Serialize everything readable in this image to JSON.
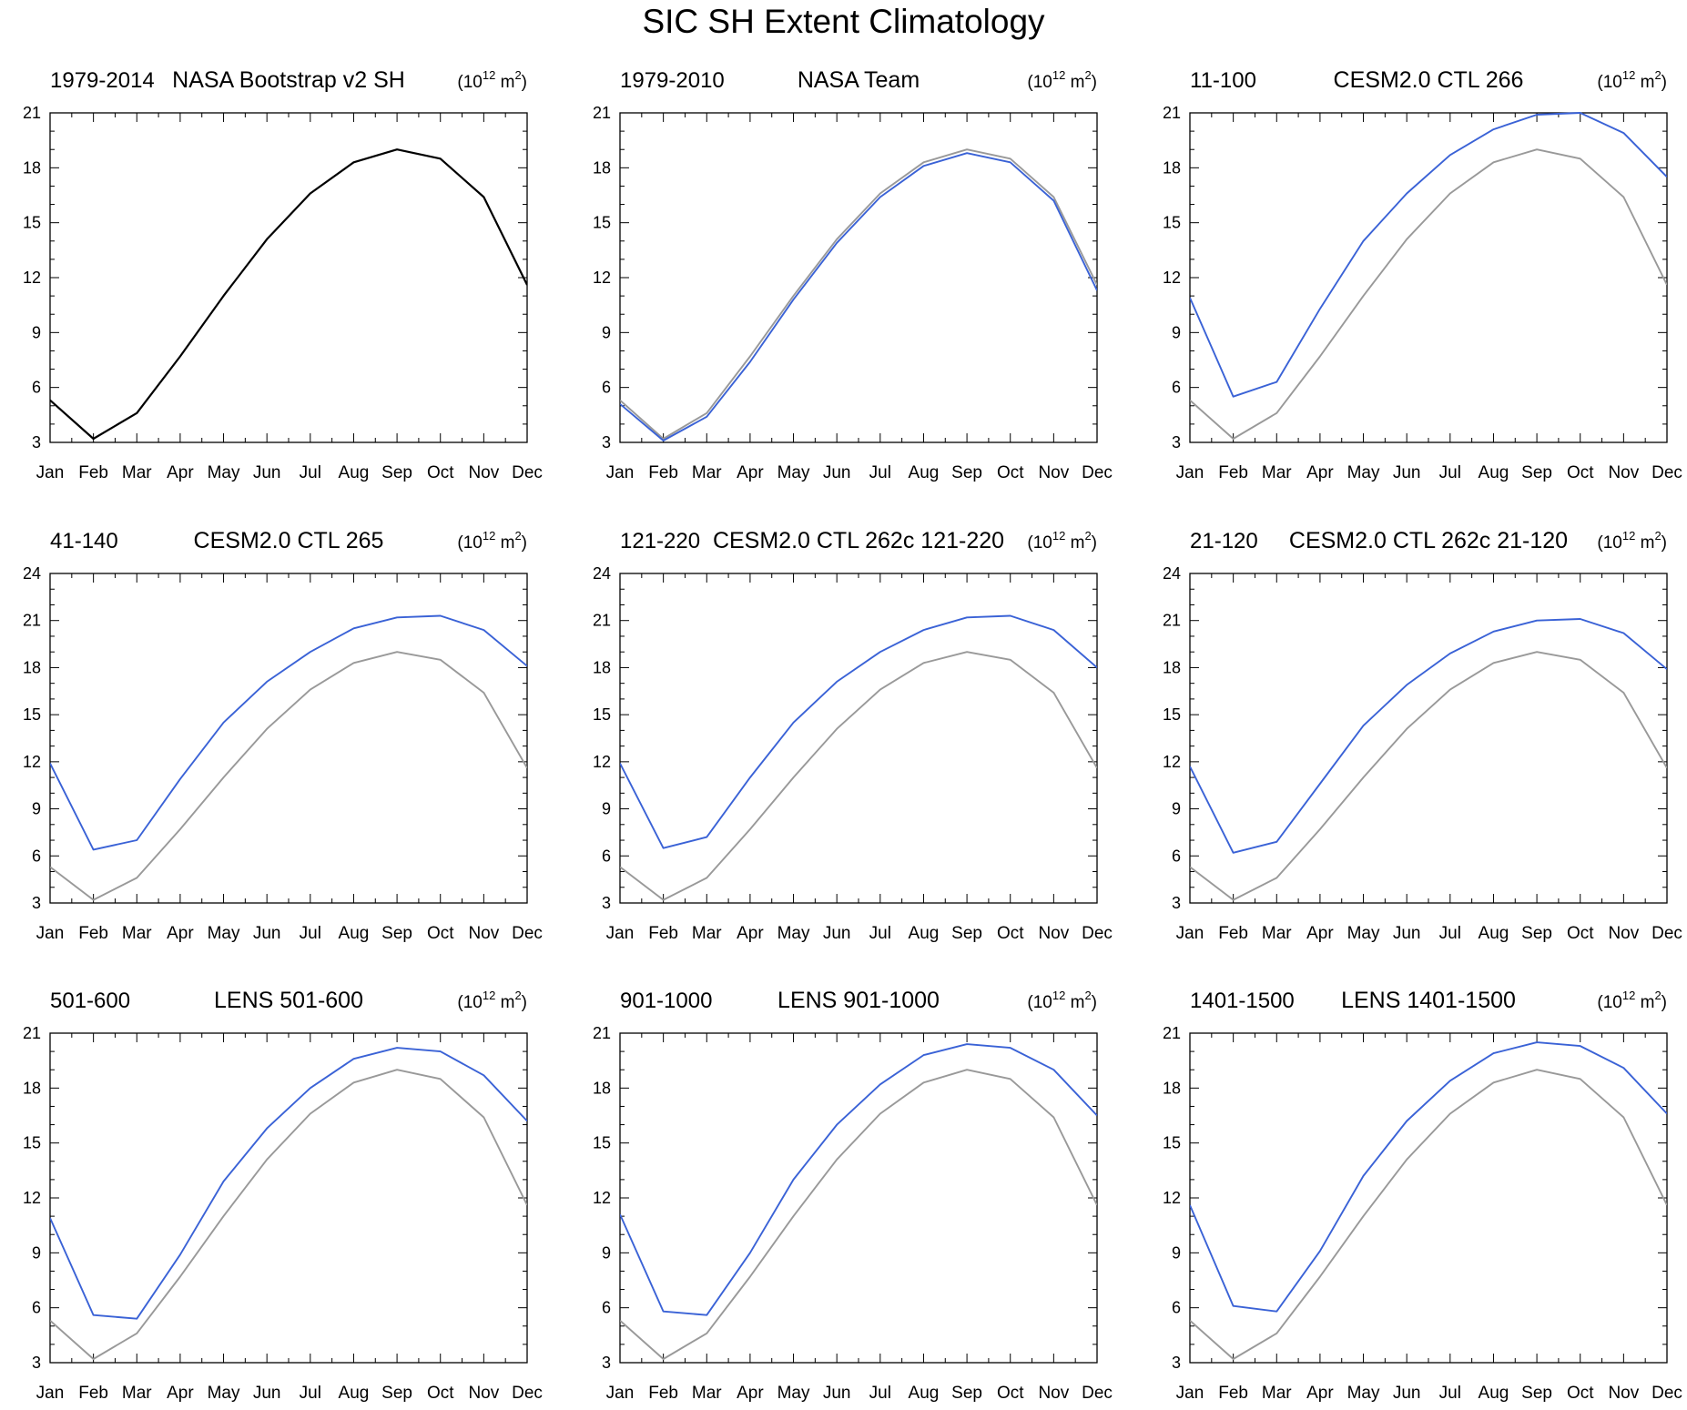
{
  "title": "SIC SH Extent Climatology",
  "units_label": {
    "base": "(10",
    "exponent": "12",
    "unit": " m",
    "unit_exponent": "2",
    "close": ")"
  },
  "colors": {
    "reference": "#000000",
    "reference_overlay": "#999999",
    "model": "#3a62d6"
  },
  "chart_data": [
    {
      "type": "line",
      "period": "1979-2014",
      "title": "NASA Bootstrap v2 SH",
      "categories": [
        "Jan",
        "Feb",
        "Mar",
        "Apr",
        "May",
        "Jun",
        "Jul",
        "Aug",
        "Sep",
        "Oct",
        "Nov",
        "Dec"
      ],
      "ylim": [
        3,
        21
      ],
      "yticks": [
        3,
        6,
        9,
        12,
        15,
        18,
        21
      ],
      "series": [
        {
          "name": "NASA Bootstrap v2 SH",
          "role": "reference",
          "values": [
            5.3,
            3.2,
            4.6,
            7.7,
            11.0,
            14.1,
            16.6,
            18.3,
            19.0,
            18.5,
            16.4,
            11.6
          ]
        }
      ]
    },
    {
      "type": "line",
      "period": "1979-2010",
      "title": "NASA Team",
      "categories": [
        "Jan",
        "Feb",
        "Mar",
        "Apr",
        "May",
        "Jun",
        "Jul",
        "Aug",
        "Sep",
        "Oct",
        "Nov",
        "Dec"
      ],
      "ylim": [
        3,
        21
      ],
      "yticks": [
        3,
        6,
        9,
        12,
        15,
        18,
        21
      ],
      "series": [
        {
          "name": "NASA Bootstrap v2 SH",
          "role": "reference_overlay",
          "values": [
            5.3,
            3.2,
            4.6,
            7.7,
            11.0,
            14.1,
            16.6,
            18.3,
            19.0,
            18.5,
            16.4,
            11.6
          ]
        },
        {
          "name": "NASA Team",
          "role": "model",
          "values": [
            5.1,
            3.1,
            4.4,
            7.4,
            10.8,
            13.9,
            16.4,
            18.1,
            18.8,
            18.3,
            16.2,
            11.3
          ]
        }
      ]
    },
    {
      "type": "line",
      "period": "11-100",
      "title": "CESM2.0 CTL 266",
      "categories": [
        "Jan",
        "Feb",
        "Mar",
        "Apr",
        "May",
        "Jun",
        "Jul",
        "Aug",
        "Sep",
        "Oct",
        "Nov",
        "Dec"
      ],
      "ylim": [
        3,
        21
      ],
      "yticks": [
        3,
        6,
        9,
        12,
        15,
        18,
        21
      ],
      "series": [
        {
          "name": "NASA Bootstrap v2 SH",
          "role": "reference_overlay",
          "values": [
            5.3,
            3.2,
            4.6,
            7.7,
            11.0,
            14.1,
            16.6,
            18.3,
            19.0,
            18.5,
            16.4,
            11.6
          ]
        },
        {
          "name": "CESM2.0 CTL 266",
          "role": "model",
          "values": [
            10.9,
            5.5,
            6.3,
            10.3,
            14.0,
            16.6,
            18.7,
            20.1,
            20.9,
            21.0,
            19.9,
            17.5
          ]
        }
      ]
    },
    {
      "type": "line",
      "period": "41-140",
      "title": "CESM2.0 CTL 265",
      "categories": [
        "Jan",
        "Feb",
        "Mar",
        "Apr",
        "May",
        "Jun",
        "Jul",
        "Aug",
        "Sep",
        "Oct",
        "Nov",
        "Dec"
      ],
      "ylim": [
        3,
        24
      ],
      "yticks": [
        3,
        6,
        9,
        12,
        15,
        18,
        21,
        24
      ],
      "series": [
        {
          "name": "NASA Bootstrap v2 SH",
          "role": "reference_overlay",
          "values": [
            5.3,
            3.2,
            4.6,
            7.7,
            11.0,
            14.1,
            16.6,
            18.3,
            19.0,
            18.5,
            16.4,
            11.6
          ]
        },
        {
          "name": "CESM2.0 CTL 265",
          "role": "model",
          "values": [
            11.9,
            6.4,
            7.0,
            10.9,
            14.5,
            17.1,
            19.0,
            20.5,
            21.2,
            21.3,
            20.4,
            18.1
          ]
        }
      ]
    },
    {
      "type": "line",
      "period": "121-220",
      "title": "CESM2.0 CTL 262c 121-220",
      "categories": [
        "Jan",
        "Feb",
        "Mar",
        "Apr",
        "May",
        "Jun",
        "Jul",
        "Aug",
        "Sep",
        "Oct",
        "Nov",
        "Dec"
      ],
      "ylim": [
        3,
        24
      ],
      "yticks": [
        3,
        6,
        9,
        12,
        15,
        18,
        21,
        24
      ],
      "series": [
        {
          "name": "NASA Bootstrap v2 SH",
          "role": "reference_overlay",
          "values": [
            5.3,
            3.2,
            4.6,
            7.7,
            11.0,
            14.1,
            16.6,
            18.3,
            19.0,
            18.5,
            16.4,
            11.6
          ]
        },
        {
          "name": "CESM2.0 CTL 262c 121-220",
          "role": "model",
          "values": [
            11.9,
            6.5,
            7.2,
            11.0,
            14.5,
            17.1,
            19.0,
            20.4,
            21.2,
            21.3,
            20.4,
            18.0
          ]
        }
      ]
    },
    {
      "type": "line",
      "period": "21-120",
      "title": "CESM2.0 CTL 262c 21-120",
      "categories": [
        "Jan",
        "Feb",
        "Mar",
        "Apr",
        "May",
        "Jun",
        "Jul",
        "Aug",
        "Sep",
        "Oct",
        "Nov",
        "Dec"
      ],
      "ylim": [
        3,
        24
      ],
      "yticks": [
        3,
        6,
        9,
        12,
        15,
        18,
        21,
        24
      ],
      "series": [
        {
          "name": "NASA Bootstrap v2 SH",
          "role": "reference_overlay",
          "values": [
            5.3,
            3.2,
            4.6,
            7.7,
            11.0,
            14.1,
            16.6,
            18.3,
            19.0,
            18.5,
            16.4,
            11.6
          ]
        },
        {
          "name": "CESM2.0 CTL 262c 21-120",
          "role": "model",
          "values": [
            11.7,
            6.2,
            6.9,
            10.6,
            14.3,
            16.9,
            18.9,
            20.3,
            21.0,
            21.1,
            20.2,
            17.9
          ]
        }
      ]
    },
    {
      "type": "line",
      "period": "501-600",
      "title": "LENS 501-600",
      "categories": [
        "Jan",
        "Feb",
        "Mar",
        "Apr",
        "May",
        "Jun",
        "Jul",
        "Aug",
        "Sep",
        "Oct",
        "Nov",
        "Dec"
      ],
      "ylim": [
        3,
        21
      ],
      "yticks": [
        3,
        6,
        9,
        12,
        15,
        18,
        21
      ],
      "series": [
        {
          "name": "NASA Bootstrap v2 SH",
          "role": "reference_overlay",
          "values": [
            5.3,
            3.2,
            4.6,
            7.7,
            11.0,
            14.1,
            16.6,
            18.3,
            19.0,
            18.5,
            16.4,
            11.6
          ]
        },
        {
          "name": "LENS 501-600",
          "role": "model",
          "values": [
            10.9,
            5.6,
            5.4,
            8.9,
            12.9,
            15.8,
            18.0,
            19.6,
            20.2,
            20.0,
            18.7,
            16.2
          ]
        }
      ]
    },
    {
      "type": "line",
      "period": "901-1000",
      "title": "LENS 901-1000",
      "categories": [
        "Jan",
        "Feb",
        "Mar",
        "Apr",
        "May",
        "Jun",
        "Jul",
        "Aug",
        "Sep",
        "Oct",
        "Nov",
        "Dec"
      ],
      "ylim": [
        3,
        21
      ],
      "yticks": [
        3,
        6,
        9,
        12,
        15,
        18,
        21
      ],
      "series": [
        {
          "name": "NASA Bootstrap v2 SH",
          "role": "reference_overlay",
          "values": [
            5.3,
            3.2,
            4.6,
            7.7,
            11.0,
            14.1,
            16.6,
            18.3,
            19.0,
            18.5,
            16.4,
            11.6
          ]
        },
        {
          "name": "LENS 901-1000",
          "role": "model",
          "values": [
            11.1,
            5.8,
            5.6,
            9.0,
            13.0,
            16.0,
            18.2,
            19.8,
            20.4,
            20.2,
            19.0,
            16.5
          ]
        }
      ]
    },
    {
      "type": "line",
      "period": "1401-1500",
      "title": "LENS 1401-1500",
      "categories": [
        "Jan",
        "Feb",
        "Mar",
        "Apr",
        "May",
        "Jun",
        "Jul",
        "Aug",
        "Sep",
        "Oct",
        "Nov",
        "Dec"
      ],
      "ylim": [
        3,
        21
      ],
      "yticks": [
        3,
        6,
        9,
        12,
        15,
        18,
        21
      ],
      "series": [
        {
          "name": "NASA Bootstrap v2 SH",
          "role": "reference_overlay",
          "values": [
            5.3,
            3.2,
            4.6,
            7.7,
            11.0,
            14.1,
            16.6,
            18.3,
            19.0,
            18.5,
            16.4,
            11.6
          ]
        },
        {
          "name": "LENS 1401-1500",
          "role": "model",
          "values": [
            11.6,
            6.1,
            5.8,
            9.1,
            13.2,
            16.2,
            18.4,
            19.9,
            20.5,
            20.3,
            19.1,
            16.6
          ]
        }
      ]
    }
  ]
}
